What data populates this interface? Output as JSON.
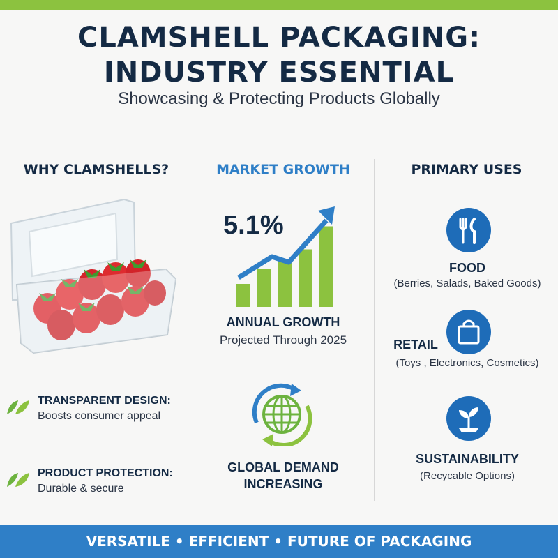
{
  "header": {
    "title_line1": "CLAMSHELL PACKAGING:",
    "title_line2": "INDUSTRY ESSENTIAL",
    "subtitle": "Showcasing & Protecting Products Globally"
  },
  "why": {
    "heading": "WHY CLAMSHELLS?",
    "image_icon": "strawberry-clamshell-container",
    "features": [
      {
        "title": "TRANSPARENT DESIGN:",
        "desc": "Boosts consumer appeal",
        "icon": "leaf-icon"
      },
      {
        "title": "PRODUCT PROTECTION:",
        "desc": "Durable & secure",
        "icon": "leaf-icon"
      }
    ]
  },
  "market": {
    "heading": "MARKET GROWTH",
    "percent": "5.1%",
    "growth_label": "ANNUAL GROWTH",
    "growth_sub": "Projected Through 2025",
    "bar_levels": [
      0.22,
      0.36,
      0.44,
      0.55,
      0.77
    ],
    "demand_line1": "GLOBAL DEMAND",
    "demand_line2": "INCREASING",
    "demand_icon": "globe-cycle-icon"
  },
  "uses": {
    "heading": "PRIMARY USES",
    "items": [
      {
        "title": "FOOD",
        "desc": "(Berries, Salads, Baked Goods)",
        "icon": "fork-knife-icon"
      },
      {
        "title": "RETAIL",
        "desc": "(Toys  , Electronics, Cosmetics)",
        "icon": "shopping-bag-icon"
      },
      {
        "title": "SUSTAINABILITY",
        "desc": "(Recycable Options)",
        "icon": "sprout-icon"
      }
    ]
  },
  "footer": {
    "tagline": "VERSATILE • EFFICIENT • FUTURE OF PACKAGING"
  },
  "colors": {
    "accent_green": "#8cc23f",
    "accent_blue": "#2f7fc7",
    "icon_blue": "#1e6cb8",
    "dark_text": "#142a44"
  }
}
